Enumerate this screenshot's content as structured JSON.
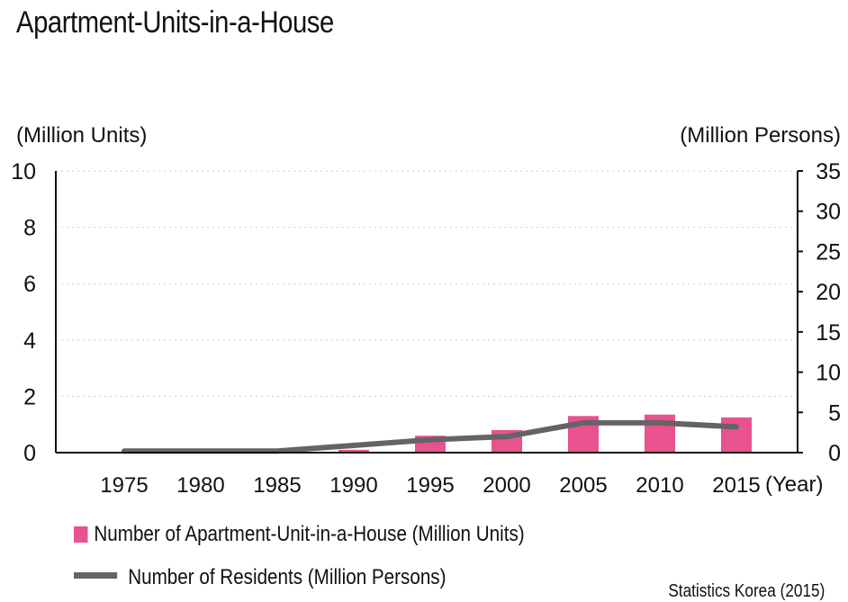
{
  "title": "Apartment-Units-in-a-House",
  "source": "Statistics Korea (2015)",
  "colors": {
    "bar": "#e8528f",
    "line": "#646464",
    "grid": "#cfcfcf"
  },
  "chart_data": {
    "type": "bar",
    "categories": [
      "1975",
      "1980",
      "1985",
      "1990",
      "1995",
      "2000",
      "2005",
      "2010",
      "2015"
    ],
    "x_unit_label": "(Year)",
    "series": [
      {
        "name": "Number of Apartment-Unit-in-a-House (Million Units)",
        "type": "bar",
        "axis": "left",
        "values": [
          0,
          0,
          0,
          0.1,
          0.6,
          0.8,
          1.3,
          1.35,
          1.25
        ]
      },
      {
        "name": "Number of Residents (Million Persons)",
        "type": "line",
        "axis": "right",
        "values": [
          0.2,
          0.2,
          0.2,
          0.9,
          1.6,
          2.0,
          3.7,
          3.7,
          3.2
        ]
      }
    ],
    "ylabel_left": "(Million Units)",
    "ylabel_right": "(Million Persons)",
    "ylim_left": [
      0,
      10
    ],
    "yticks_left": [
      "0",
      "2",
      "4",
      "6",
      "8",
      "10"
    ],
    "ylim_right": [
      0,
      35
    ],
    "yticks_right": [
      "0",
      "5",
      "10",
      "15",
      "20",
      "25",
      "30",
      "35"
    ],
    "grid": true,
    "legend_position": "bottom-left"
  }
}
